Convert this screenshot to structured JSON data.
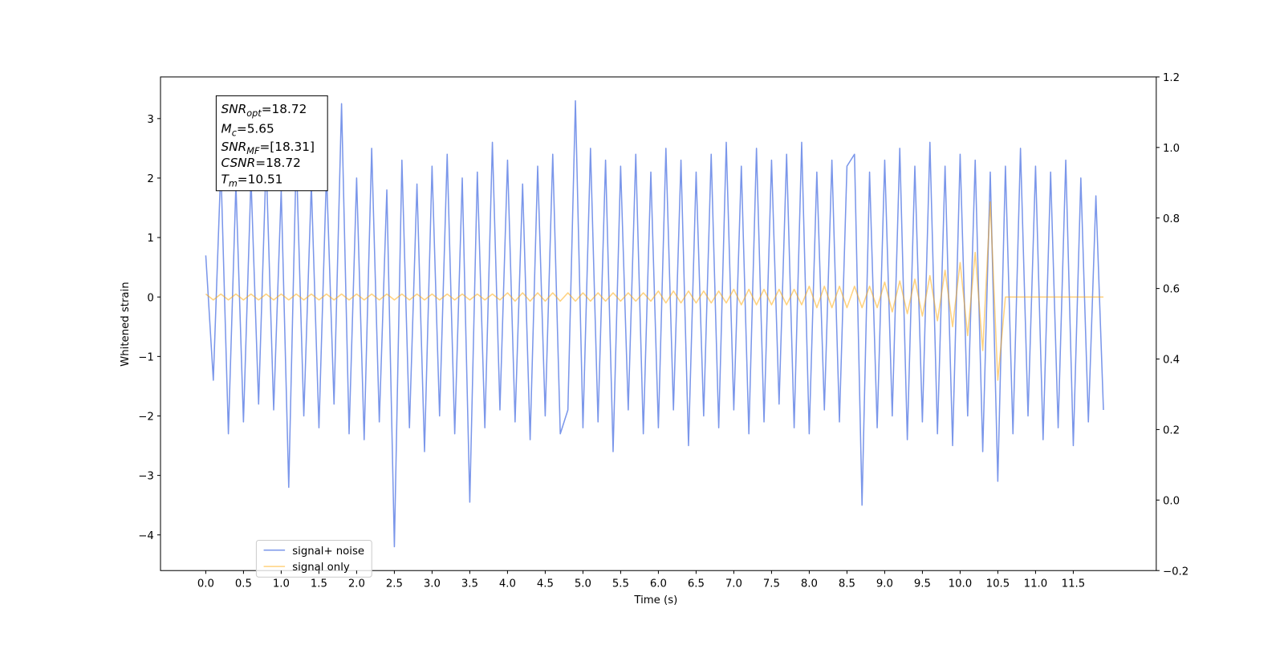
{
  "chart_data": {
    "type": "line",
    "xlabel": "Time (s)",
    "ylabel": "Whitened strain",
    "x": [
      0,
      0.1,
      0.2,
      0.3,
      0.4,
      0.5,
      0.6,
      0.7,
      0.8,
      0.9,
      1,
      1.1,
      1.2,
      1.3,
      1.4,
      1.5,
      1.6,
      1.7,
      1.8,
      1.9,
      2,
      2.1,
      2.2,
      2.3,
      2.4,
      2.5,
      2.6,
      2.7,
      2.8,
      2.9,
      3,
      3.1,
      3.2,
      3.3,
      3.4,
      3.5,
      3.6,
      3.7,
      3.8,
      3.9,
      4,
      4.1,
      4.2,
      4.3,
      4.4,
      4.5,
      4.6,
      4.7,
      4.8,
      4.9,
      5,
      5.1,
      5.2,
      5.3,
      5.4,
      5.5,
      5.6,
      5.7,
      5.8,
      5.9,
      6,
      6.1,
      6.2,
      6.3,
      6.4,
      6.5,
      6.6,
      6.7,
      6.8,
      6.9,
      7,
      7.1,
      7.2,
      7.3,
      7.4,
      7.5,
      7.6,
      7.7,
      7.8,
      7.9,
      8,
      8.1,
      8.2,
      8.3,
      8.4,
      8.5,
      8.6,
      8.7,
      8.8,
      8.9,
      9,
      9.1,
      9.2,
      9.3,
      9.4,
      9.5,
      9.6,
      9.7,
      9.8,
      9.9,
      10,
      10.1,
      10.2,
      10.3,
      10.4,
      10.5,
      10.6,
      10.7,
      10.8,
      10.9,
      11,
      11.1,
      11.2,
      11.3,
      11.4,
      11.5,
      11.6,
      11.7,
      11.8,
      11.9
    ],
    "series": [
      {
        "name": "signal+ noise",
        "color": "#4169e1",
        "values": [
          0.7,
          -1.4,
          2.2,
          -2.3,
          1.9,
          -2.1,
          2.0,
          -1.8,
          2.3,
          -1.9,
          1.8,
          -3.2,
          2.4,
          -2.0,
          1.9,
          -2.2,
          2.1,
          -1.8,
          3.25,
          -2.3,
          2.0,
          -2.4,
          2.5,
          -2.1,
          1.8,
          -4.2,
          2.3,
          -2.2,
          1.9,
          -2.6,
          2.2,
          -2.0,
          2.4,
          -2.3,
          2.0,
          -3.45,
          2.1,
          -2.2,
          2.6,
          -1.9,
          2.3,
          -2.1,
          1.9,
          -2.4,
          2.2,
          -2.0,
          2.4,
          -2.3,
          -1.9,
          3.3,
          -2.2,
          2.5,
          -2.1,
          2.3,
          -2.6,
          2.2,
          -1.9,
          2.4,
          -2.3,
          2.1,
          -2.2,
          2.5,
          -1.9,
          2.3,
          -2.5,
          2.1,
          -2.0,
          2.4,
          -2.2,
          2.6,
          -1.9,
          2.2,
          -2.3,
          2.5,
          -2.1,
          2.3,
          -1.8,
          2.4,
          -2.2,
          2.6,
          -2.3,
          2.1,
          -1.9,
          2.3,
          -2.1,
          2.2,
          2.4,
          -3.5,
          2.1,
          -2.2,
          2.3,
          -2.0,
          2.5,
          -2.4,
          2.2,
          -2.1,
          2.6,
          -2.3,
          2.2,
          -2.5,
          2.4,
          -2.0,
          2.3,
          -2.6,
          2.1,
          -3.1,
          2.2,
          -2.3,
          2.5,
          -2.0,
          2.2,
          -2.4,
          2.1,
          -2.2,
          2.3,
          -2.5,
          2.0,
          -2.1,
          1.7,
          -1.9
        ]
      },
      {
        "name": "signal only",
        "color": "#ffa500",
        "values": [
          0.05,
          -0.05,
          0.05,
          -0.05,
          0.05,
          -0.05,
          0.05,
          -0.05,
          0.05,
          -0.05,
          0.05,
          -0.05,
          0.05,
          -0.05,
          0.05,
          -0.05,
          0.05,
          -0.05,
          0.05,
          -0.05,
          0.05,
          -0.05,
          0.05,
          -0.05,
          0.05,
          -0.05,
          0.05,
          -0.05,
          0.05,
          -0.05,
          0.05,
          -0.05,
          0.05,
          -0.05,
          0.05,
          -0.05,
          0.05,
          -0.05,
          0.05,
          -0.05,
          0.07,
          -0.07,
          0.07,
          -0.07,
          0.07,
          -0.07,
          0.07,
          -0.07,
          0.07,
          -0.07,
          0.07,
          -0.07,
          0.07,
          -0.07,
          0.07,
          -0.07,
          0.07,
          -0.07,
          0.07,
          -0.07,
          0.1,
          -0.1,
          0.1,
          -0.1,
          0.1,
          -0.1,
          0.1,
          -0.1,
          0.1,
          -0.1,
          0.13,
          -0.13,
          0.13,
          -0.13,
          0.13,
          -0.13,
          0.13,
          -0.13,
          0.13,
          -0.13,
          0.18,
          -0.18,
          0.18,
          -0.18,
          0.18,
          -0.18,
          0.18,
          -0.18,
          0.18,
          -0.18,
          0.25,
          -0.25,
          0.27,
          -0.28,
          0.3,
          -0.32,
          0.36,
          -0.4,
          0.45,
          -0.5,
          0.58,
          -0.65,
          0.75,
          -0.9,
          1.6,
          -1.4,
          0,
          0,
          0,
          0,
          0,
          0,
          0,
          0,
          0,
          0,
          0,
          0,
          0,
          0
        ]
      }
    ],
    "xlim": [
      -0.6,
      12.6
    ],
    "xticks": [
      {
        "value": 0,
        "label": "0.0"
      },
      0.5,
      {
        "value": 1,
        "label": "1.0"
      },
      1.5,
      {
        "value": 2,
        "label": "2.0"
      },
      2.5,
      {
        "value": 3,
        "label": "3.0"
      },
      3.5,
      {
        "value": 4,
        "label": "4.0"
      },
      4.5,
      {
        "value": 5,
        "label": "5.0"
      },
      5.5,
      {
        "value": 6,
        "label": "6.0"
      },
      6.5,
      {
        "value": 7,
        "label": "7.0"
      },
      7.5,
      {
        "value": 8,
        "label": "8.0"
      },
      8.5,
      {
        "value": 9,
        "label": "9.0"
      },
      9.5,
      {
        "value": 10,
        "label": "10.0"
      },
      10.5,
      {
        "value": 11,
        "label": "11.0"
      },
      11.5
    ],
    "ylim": [
      -4.6,
      3.7
    ],
    "yticks": [
      {
        "value": -4,
        "label": "−4"
      },
      {
        "value": -3,
        "label": "−3"
      },
      {
        "value": -2,
        "label": "−2"
      },
      {
        "value": -1,
        "label": "−1"
      },
      0,
      1,
      2,
      3
    ],
    "y2lim": [
      -0.2,
      1.2
    ],
    "y2ticks": [
      {
        "value": -0.2,
        "label": "−0.2"
      },
      {
        "value": 0,
        "label": "0.0"
      },
      0.2,
      0.4,
      0.6,
      0.8,
      {
        "value": 1,
        "label": "1.0"
      },
      1.2
    ],
    "annotations": [
      {
        "main": "SNR",
        "sub": "opt",
        "rest": "=18.72"
      },
      {
        "main": "M",
        "sub": "c",
        "rest": "=5.65"
      },
      {
        "main": "SNR",
        "sub": "MF",
        "rest": "=[18.31]"
      },
      {
        "main": "CSNR",
        "rest": "=18.72"
      },
      {
        "main": "T",
        "sub": "m",
        "rest": "=10.51"
      }
    ],
    "legend": "lower left"
  }
}
